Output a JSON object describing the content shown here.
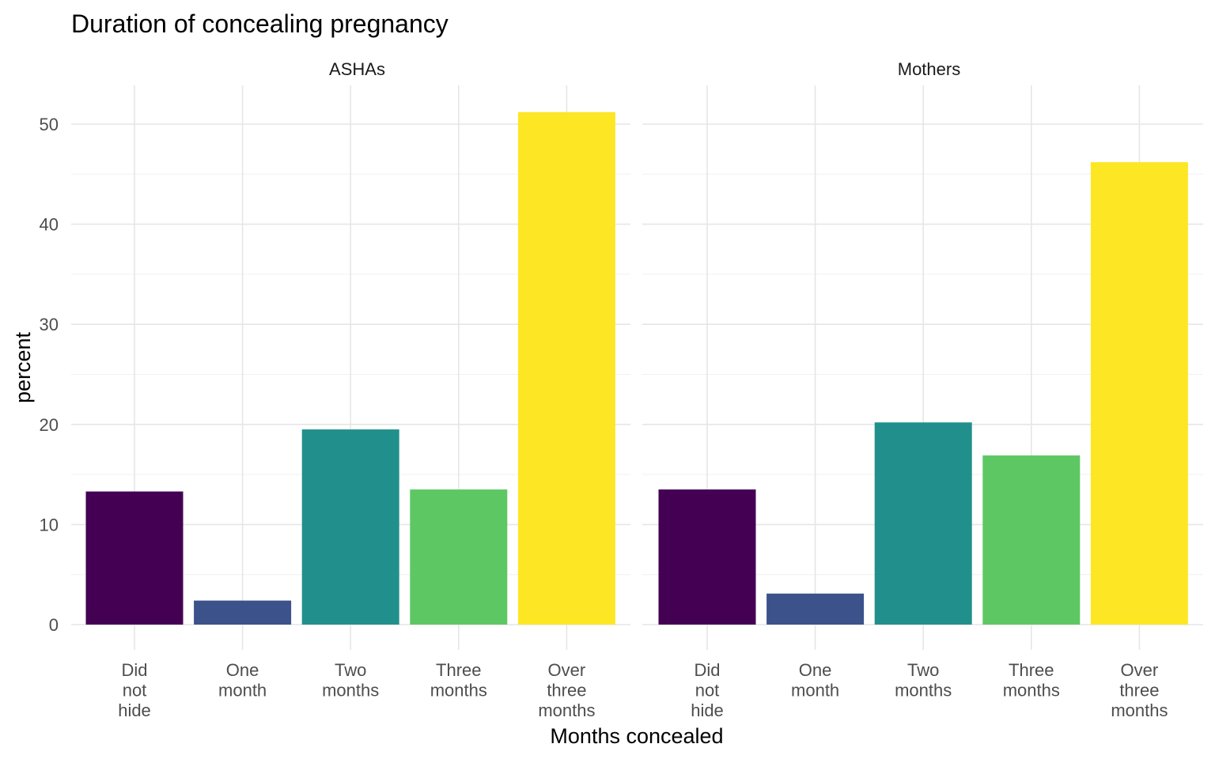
{
  "chart_data": {
    "type": "bar",
    "title": "Duration of concealing pregnancy",
    "xlabel": "Months concealed",
    "ylabel": "percent",
    "ylim": [
      0,
      50
    ],
    "yticks": [
      "0",
      "10",
      "20",
      "30",
      "40",
      "50"
    ],
    "grid": true,
    "categories": [
      "Did\nnot\nhide",
      "One\nmonth",
      "Two\nmonths",
      "Three\nmonths",
      "Over\nthree\nmonths"
    ],
    "colors": [
      "#440154",
      "#3B528B",
      "#21908C",
      "#5DC863",
      "#FDE725"
    ],
    "facets": [
      {
        "label": "ASHAs",
        "values": [
          13.3,
          2.4,
          19.5,
          13.5,
          51.2
        ]
      },
      {
        "label": "Mothers",
        "values": [
          13.5,
          3.1,
          20.2,
          16.9,
          46.2
        ]
      }
    ]
  }
}
